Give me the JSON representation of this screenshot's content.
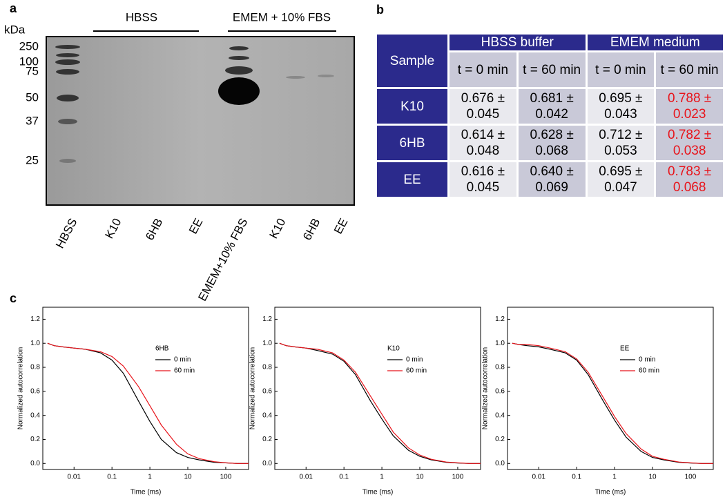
{
  "gel": {
    "panel": "a",
    "unit": "kDa",
    "markers": [
      250,
      100,
      75,
      50,
      37,
      25
    ],
    "groups": [
      "HBSS",
      "EMEM + 10% FBS"
    ],
    "lanes": [
      "HBSS",
      "K10",
      "6HB",
      "EE",
      "EMEM+10% FBS",
      "K10",
      "6HB",
      "EE"
    ]
  },
  "table": {
    "panel": "b",
    "header": [
      "Sample",
      "HBSS buffer",
      "EMEM medium"
    ],
    "subheader": [
      "t = 0 min",
      "t = 60 min",
      "t = 0 min",
      "t = 60 min"
    ],
    "rows": [
      [
        "K10",
        "0.676 ± 0.045",
        "0.681 ± 0.042",
        "0.695 ± 0.043",
        "0.788 ± 0.023"
      ],
      [
        "6HB",
        "0.614 ± 0.048",
        "0.628 ± 0.068",
        "0.712 ± 0.053",
        "0.782 ± 0.038"
      ],
      [
        "EE",
        "0.616 ± 0.045",
        "0.640 ± 0.069",
        "0.695 ± 0.047",
        "0.783 ± 0.068"
      ]
    ]
  },
  "panel_c": "c",
  "chart_data": [
    {
      "type": "line",
      "label": "6HB",
      "xlabel": "Time (ms)",
      "ylabel": "Normalized autocorrelation",
      "log_x": true,
      "x": [
        0.002,
        0.003,
        0.005,
        0.01,
        0.02,
        0.05,
        0.1,
        0.2,
        0.5,
        1,
        2,
        5,
        10,
        20,
        50,
        100,
        200,
        400
      ],
      "series": [
        {
          "name": "0 min",
          "color": "#000000",
          "values": [
            1.0,
            0.98,
            0.97,
            0.96,
            0.95,
            0.92,
            0.86,
            0.75,
            0.52,
            0.35,
            0.2,
            0.09,
            0.05,
            0.03,
            0.01,
            0.005,
            0,
            0
          ]
        },
        {
          "name": "60 min",
          "color": "#e8141b",
          "values": [
            1.0,
            0.98,
            0.97,
            0.96,
            0.95,
            0.93,
            0.89,
            0.81,
            0.64,
            0.48,
            0.32,
            0.16,
            0.08,
            0.04,
            0.015,
            0.005,
            0,
            0
          ]
        }
      ],
      "xlim": [
        0.0015,
        400
      ],
      "ylim": [
        -0.05,
        1.3
      ],
      "xticks": [
        0.01,
        0.1,
        1,
        10,
        100
      ],
      "yticks": [
        {
          "value": 0,
          "label": "0.0"
        },
        {
          "value": 0.2,
          "label": "0.2"
        },
        {
          "value": 0.4,
          "label": "0.4"
        },
        {
          "value": 0.6,
          "label": "0.6"
        },
        {
          "value": 0.8,
          "label": "0.8"
        },
        {
          "value": 1,
          "label": "1.0"
        },
        {
          "value": 1.2,
          "label": "1.2"
        }
      ]
    },
    {
      "type": "line",
      "label": "K10",
      "xlabel": "Time (ms)",
      "ylabel": "Normalized autocorrelation",
      "log_x": true,
      "x": [
        0.002,
        0.003,
        0.005,
        0.01,
        0.02,
        0.05,
        0.1,
        0.2,
        0.5,
        1,
        2,
        5,
        10,
        20,
        50,
        100,
        200,
        400
      ],
      "series": [
        {
          "name": "0 min",
          "color": "#000000",
          "values": [
            1.0,
            0.98,
            0.97,
            0.96,
            0.94,
            0.91,
            0.85,
            0.74,
            0.52,
            0.37,
            0.23,
            0.11,
            0.06,
            0.03,
            0.01,
            0.004,
            0,
            0
          ]
        },
        {
          "name": "60 min",
          "color": "#e8141b",
          "values": [
            1.0,
            0.98,
            0.97,
            0.96,
            0.95,
            0.92,
            0.86,
            0.76,
            0.56,
            0.41,
            0.26,
            0.13,
            0.07,
            0.035,
            0.012,
            0.005,
            0,
            0
          ]
        }
      ],
      "xlim": [
        0.0015,
        400
      ],
      "ylim": [
        -0.05,
        1.3
      ],
      "xticks": [
        0.01,
        0.1,
        1,
        10,
        100
      ],
      "yticks": [
        {
          "value": 0,
          "label": "0.0"
        },
        {
          "value": 0.2,
          "label": "0.2"
        },
        {
          "value": 0.4,
          "label": "0.4"
        },
        {
          "value": 0.6,
          "label": "0.6"
        },
        {
          "value": 0.8,
          "label": "0.8"
        },
        {
          "value": 1,
          "label": "1.0"
        },
        {
          "value": 1.2,
          "label": "1.2"
        }
      ]
    },
    {
      "type": "line",
      "label": "EE",
      "xlabel": "Time (ms)",
      "ylabel": "Normalized autocorrelation",
      "log_x": true,
      "x": [
        0.002,
        0.003,
        0.005,
        0.01,
        0.02,
        0.05,
        0.1,
        0.2,
        0.5,
        1,
        2,
        5,
        10,
        20,
        50,
        100,
        200,
        400
      ],
      "series": [
        {
          "name": "0 min",
          "color": "#000000",
          "values": [
            1.0,
            0.99,
            0.98,
            0.97,
            0.95,
            0.92,
            0.86,
            0.74,
            0.52,
            0.36,
            0.22,
            0.1,
            0.05,
            0.03,
            0.01,
            0.004,
            0,
            0
          ]
        },
        {
          "name": "60 min",
          "color": "#e8141b",
          "values": [
            1.0,
            0.99,
            0.99,
            0.98,
            0.96,
            0.93,
            0.87,
            0.76,
            0.55,
            0.39,
            0.25,
            0.12,
            0.06,
            0.035,
            0.012,
            0.005,
            0,
            0
          ]
        }
      ],
      "xlim": [
        0.0015,
        400
      ],
      "ylim": [
        -0.05,
        1.3
      ],
      "xticks": [
        0.01,
        0.1,
        1,
        10,
        100
      ],
      "yticks": [
        {
          "value": 0,
          "label": "0.0"
        },
        {
          "value": 0.2,
          "label": "0.2"
        },
        {
          "value": 0.4,
          "label": "0.4"
        },
        {
          "value": 0.6,
          "label": "0.6"
        },
        {
          "value": 0.8,
          "label": "0.8"
        },
        {
          "value": 1,
          "label": "1.0"
        },
        {
          "value": 1.2,
          "label": "1.2"
        }
      ]
    }
  ]
}
